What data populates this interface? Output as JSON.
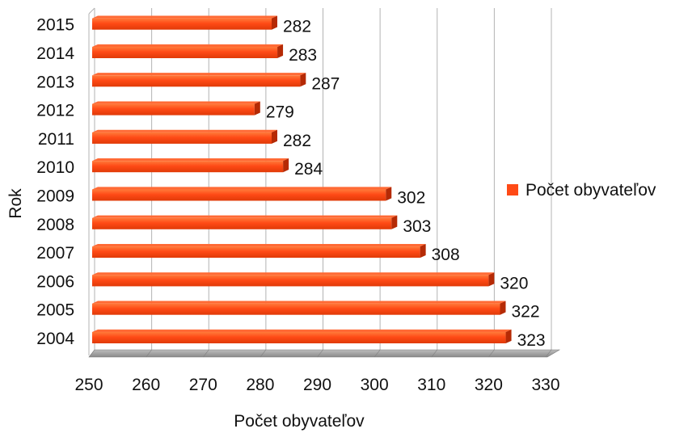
{
  "chart_data": {
    "type": "bar",
    "orientation": "horizontal",
    "categories": [
      "2004",
      "2005",
      "2006",
      "2007",
      "2008",
      "2009",
      "2010",
      "2011",
      "2012",
      "2013",
      "2014",
      "2015"
    ],
    "series": [
      {
        "name": "Počet obyvateľov",
        "values": [
          323,
          322,
          320,
          308,
          303,
          302,
          284,
          282,
          279,
          287,
          283,
          282
        ]
      }
    ],
    "xlabel": "Počet obyvateľov",
    "ylabel": "Rok",
    "xlim": [
      250,
      330
    ],
    "xticks": [
      "250",
      "260",
      "270",
      "280",
      "290",
      "300",
      "310",
      "320",
      "330"
    ],
    "grid": true,
    "legend_position": "right",
    "data_labels": true,
    "colors": {
      "bar": "#ff4a16",
      "bar_dark": "#b52a05",
      "grid": "#b3b3b3",
      "floor": "#9a9a9a"
    }
  }
}
